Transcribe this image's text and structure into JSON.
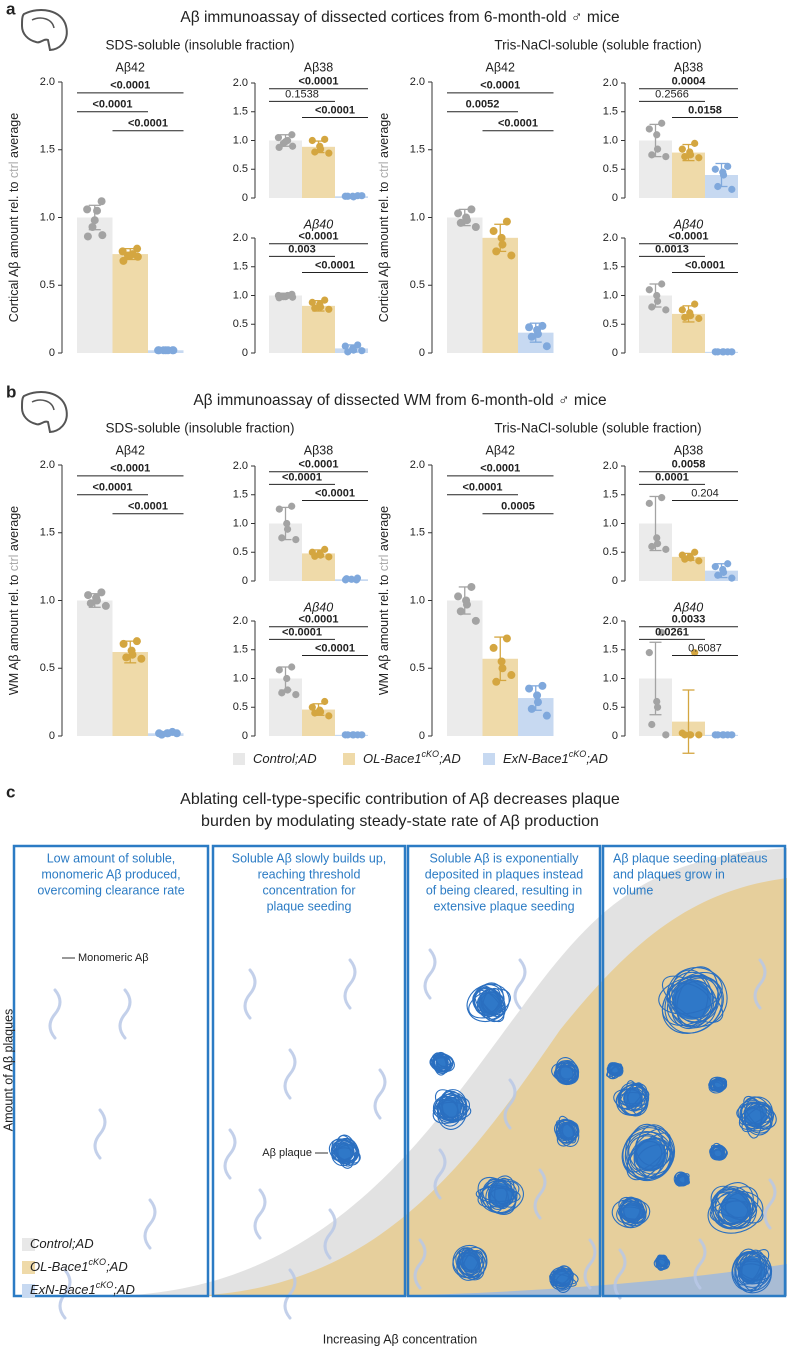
{
  "figure": {
    "panels": [
      {
        "label": "a",
        "title": "Aβ immunoassay of dissected cortices from 6-month-old ♂ mice",
        "groups": [
          "SDS-soluble (insoluble fraction)",
          "Tris-NaCl-soluble (soluble fraction)"
        ]
      },
      {
        "label": "b",
        "title": "Aβ immunoassay of dissected WM from 6-month-old ♂ mice",
        "groups": [
          "SDS-soluble (insoluble fraction)",
          "Tris-NaCl-soluble (soluble fraction)"
        ]
      }
    ],
    "legend": [
      {
        "name": "Control;AD",
        "color": "#e8e8e8"
      },
      {
        "name": "OL-Bace1",
        "sup": "cKO",
        "suffix": ";AD",
        "color": "#efdaa9"
      },
      {
        "name": "ExN-Bace1",
        "sup": "cKO",
        "suffix": ";AD",
        "color": "#c7d9f1"
      }
    ]
  },
  "chart_data": [
    {
      "type": "bar",
      "title": "Aβ42",
      "italic": false,
      "ylabel": [
        "Cortical Aβ amount rel. to ",
        "ctrl",
        " average"
      ],
      "values": [
        1.0,
        0.73,
        0.02
      ],
      "errors": [
        0.09,
        0.04,
        0.005
      ],
      "points": [
        [
          1.12,
          1.06,
          1.05,
          0.98,
          0.93,
          0.87,
          0.86
        ],
        [
          0.77,
          0.75,
          0.73,
          0.72,
          0.72,
          0.71,
          0.68
        ],
        [
          0.02,
          0.02,
          0.02,
          0.02,
          0.02,
          0.02,
          0.02
        ]
      ],
      "colors": [
        "#ebebeb",
        "#efdaa9",
        "#c7d9f1"
      ],
      "point_colors": [
        "#a3a3a3",
        "#d4a640",
        "#7fa8dc"
      ],
      "ylim": [
        0,
        2
      ],
      "yticks": [
        0,
        0.5,
        {
          "value": 1,
          "label": "1.0"
        },
        1.5,
        {
          "value": 2,
          "label": "2.0"
        }
      ],
      "comparisons": [
        {
          "pair": [
            0,
            2
          ],
          "label": "<0.0001",
          "bold": true
        },
        {
          "pair": [
            0,
            1
          ],
          "label": "<0.0001",
          "bold": true
        },
        {
          "pair": [
            1,
            2
          ],
          "label": "<0.0001",
          "bold": true
        }
      ]
    },
    {
      "type": "bar",
      "title": "Aβ38",
      "italic": false,
      "values": [
        1.0,
        0.89,
        0.03
      ],
      "errors": [
        0.1,
        0.1,
        0.01
      ],
      "points": [
        [
          1.1,
          1.05,
          1.0,
          0.98,
          0.95,
          0.9,
          0.88
        ],
        [
          1.02,
          1.0,
          0.9,
          0.85,
          0.8,
          0.78
        ],
        [
          0.04,
          0.03,
          0.03,
          0.02,
          0.03,
          0.04
        ]
      ],
      "colors": [
        "#ebebeb",
        "#efdaa9",
        "#c7d9f1"
      ],
      "point_colors": [
        "#a3a3a3",
        "#d4a640",
        "#7fa8dc"
      ],
      "ylim": [
        0,
        2
      ],
      "yticks": [
        0,
        0.5,
        {
          "value": 1,
          "label": "1.0"
        },
        1.5,
        {
          "value": 2,
          "label": "2.0"
        }
      ],
      "comparisons": [
        {
          "pair": [
            0,
            2
          ],
          "label": "<0.0001",
          "bold": true
        },
        {
          "pair": [
            0,
            1
          ],
          "label": "0.1538",
          "bold": false
        },
        {
          "pair": [
            1,
            2
          ],
          "label": "<0.0001",
          "bold": true
        }
      ]
    },
    {
      "type": "bar",
      "title": "Aβ40",
      "italic": true,
      "values": [
        1.0,
        0.82,
        0.08
      ],
      "errors": [
        0.04,
        0.09,
        0.06
      ],
      "points": [
        [
          1.02,
          1.0,
          1.0,
          0.98,
          0.98,
          0.97,
          0.96
        ],
        [
          0.92,
          0.88,
          0.85,
          0.8,
          0.78,
          0.76
        ],
        [
          0.14,
          0.12,
          0.08,
          0.05,
          0.02,
          0.04
        ]
      ],
      "colors": [
        "#ebebeb",
        "#efdaa9",
        "#c7d9f1"
      ],
      "point_colors": [
        "#a3a3a3",
        "#d4a640",
        "#7fa8dc"
      ],
      "ylim": [
        0,
        2
      ],
      "yticks": [
        0,
        0.5,
        {
          "value": 1,
          "label": "1.0"
        },
        1.5,
        {
          "value": 2,
          "label": "2.0"
        }
      ],
      "comparisons": [
        {
          "pair": [
            0,
            2
          ],
          "label": "<0.0001",
          "bold": true
        },
        {
          "pair": [
            0,
            1
          ],
          "label": "0.003",
          "bold": true
        },
        {
          "pair": [
            1,
            2
          ],
          "label": "<0.0001",
          "bold": true
        }
      ]
    },
    {
      "type": "bar",
      "title": "Aβ42",
      "italic": false,
      "ylabel": [
        "Cortical Aβ amount rel. to ",
        "ctrl",
        " average"
      ],
      "values": [
        1.0,
        0.85,
        0.15
      ],
      "errors": [
        0.06,
        0.1,
        0.07
      ],
      "points": [
        [
          1.06,
          1.03,
          1.0,
          0.98,
          0.96,
          0.93
        ],
        [
          0.97,
          0.9,
          0.85,
          0.8,
          0.75,
          0.72
        ],
        [
          0.2,
          0.19,
          0.17,
          0.14,
          0.12,
          0.05
        ]
      ],
      "colors": [
        "#ebebeb",
        "#efdaa9",
        "#c7d9f1"
      ],
      "point_colors": [
        "#a3a3a3",
        "#d4a640",
        "#7fa8dc"
      ],
      "ylim": [
        0,
        2
      ],
      "yticks": [
        0,
        0.5,
        {
          "value": 1,
          "label": "1.0"
        },
        1.5,
        {
          "value": 2,
          "label": "2.0"
        }
      ],
      "comparisons": [
        {
          "pair": [
            0,
            2
          ],
          "label": "<0.0001",
          "bold": true
        },
        {
          "pair": [
            0,
            1
          ],
          "label": "0.0052",
          "bold": true
        },
        {
          "pair": [
            1,
            2
          ],
          "label": "<0.0001",
          "bold": true
        }
      ]
    },
    {
      "type": "bar",
      "title": "Aβ38",
      "italic": false,
      "values": [
        1.0,
        0.79,
        0.4
      ],
      "errors": [
        0.28,
        0.14,
        0.2
      ],
      "points": [
        [
          1.3,
          1.2,
          1.1,
          0.85,
          0.75,
          0.72
        ],
        [
          0.95,
          0.85,
          0.8,
          0.75,
          0.72,
          0.7
        ],
        [
          0.55,
          0.5,
          0.45,
          0.4,
          0.2,
          0.15
        ]
      ],
      "colors": [
        "#ebebeb",
        "#efdaa9",
        "#c7d9f1"
      ],
      "point_colors": [
        "#a3a3a3",
        "#d4a640",
        "#7fa8dc"
      ],
      "ylim": [
        0,
        2
      ],
      "yticks": [
        0,
        0.5,
        {
          "value": 1,
          "label": "1.0"
        },
        1.5,
        {
          "value": 2,
          "label": "2.0"
        }
      ],
      "comparisons": [
        {
          "pair": [
            0,
            2
          ],
          "label": "0.0004",
          "bold": true
        },
        {
          "pair": [
            0,
            1
          ],
          "label": "0.2566",
          "bold": false
        },
        {
          "pair": [
            1,
            2
          ],
          "label": "0.0158",
          "bold": true
        }
      ]
    },
    {
      "type": "bar",
      "title": "Aβ40",
      "italic": true,
      "values": [
        1.0,
        0.68,
        0.02
      ],
      "errors": [
        0.2,
        0.14,
        0.01
      ],
      "points": [
        [
          1.2,
          1.1,
          1.0,
          0.9,
          0.8,
          0.75
        ],
        [
          0.85,
          0.75,
          0.7,
          0.65,
          0.62,
          0.6
        ],
        [
          0.02,
          0.02,
          0.02,
          0.02,
          0.02,
          0.02
        ]
      ],
      "colors": [
        "#ebebeb",
        "#efdaa9",
        "#c7d9f1"
      ],
      "point_colors": [
        "#a3a3a3",
        "#d4a640",
        "#7fa8dc"
      ],
      "ylim": [
        0,
        2
      ],
      "yticks": [
        0,
        0.5,
        {
          "value": 1,
          "label": "1.0"
        },
        1.5,
        {
          "value": 2,
          "label": "2.0"
        }
      ],
      "comparisons": [
        {
          "pair": [
            0,
            2
          ],
          "label": "<0.0001",
          "bold": true
        },
        {
          "pair": [
            0,
            1
          ],
          "label": "0.0013",
          "bold": true
        },
        {
          "pair": [
            1,
            2
          ],
          "label": "<0.0001",
          "bold": true
        }
      ]
    },
    {
      "type": "bar",
      "title": "Aβ42",
      "italic": false,
      "ylabel": [
        "WM Aβ amount rel. to ",
        "ctrl",
        " average"
      ],
      "values": [
        1.0,
        0.62,
        0.02
      ],
      "errors": [
        0.05,
        0.08,
        0.01
      ],
      "points": [
        [
          1.06,
          1.04,
          1.02,
          1.0,
          0.98,
          0.96
        ],
        [
          0.7,
          0.68,
          0.63,
          0.6,
          0.58,
          0.57
        ],
        [
          0.03,
          0.02,
          0.02,
          0.02,
          0.01,
          0.02
        ]
      ],
      "colors": [
        "#ebebeb",
        "#efdaa9",
        "#c7d9f1"
      ],
      "point_colors": [
        "#a3a3a3",
        "#d4a640",
        "#7fa8dc"
      ],
      "ylim": [
        0,
        2
      ],
      "yticks": [
        0,
        0.5,
        {
          "value": 1,
          "label": "1.0"
        },
        1.5,
        {
          "value": 2,
          "label": "2.0"
        }
      ],
      "comparisons": [
        {
          "pair": [
            0,
            2
          ],
          "label": "<0.0001",
          "bold": true
        },
        {
          "pair": [
            0,
            1
          ],
          "label": "<0.0001",
          "bold": true
        },
        {
          "pair": [
            1,
            2
          ],
          "label": "<0.0001",
          "bold": true
        }
      ]
    },
    {
      "type": "bar",
      "title": "Aβ38",
      "italic": false,
      "values": [
        1.0,
        0.48,
        0.03
      ],
      "errors": [
        0.28,
        0.06,
        0.01
      ],
      "points": [
        [
          1.3,
          1.25,
          1.0,
          0.9,
          0.75,
          0.72
        ],
        [
          0.55,
          0.5,
          0.48,
          0.45,
          0.43,
          0.42
        ],
        [
          0.05,
          0.04,
          0.03,
          0.02,
          0.02
        ]
      ],
      "colors": [
        "#ebebeb",
        "#efdaa9",
        "#c7d9f1"
      ],
      "point_colors": [
        "#a3a3a3",
        "#d4a640",
        "#7fa8dc"
      ],
      "ylim": [
        0,
        2
      ],
      "yticks": [
        0,
        0.5,
        {
          "value": 1,
          "label": "1.0"
        },
        1.5,
        {
          "value": 2,
          "label": "2.0"
        }
      ],
      "comparisons": [
        {
          "pair": [
            0,
            2
          ],
          "label": "<0.0001",
          "bold": true
        },
        {
          "pair": [
            0,
            1
          ],
          "label": "<0.0001",
          "bold": true
        },
        {
          "pair": [
            1,
            2
          ],
          "label": "<0.0001",
          "bold": true
        }
      ]
    },
    {
      "type": "bar",
      "title": "Aβ40",
      "italic": true,
      "values": [
        1.0,
        0.46,
        0.02
      ],
      "errors": [
        0.2,
        0.1,
        0.01
      ],
      "points": [
        [
          1.2,
          1.15,
          1.0,
          0.8,
          0.75,
          0.72
        ],
        [
          0.6,
          0.5,
          0.45,
          0.42,
          0.4,
          0.35
        ],
        [
          0.02,
          0.02,
          0.02,
          0.02,
          0.02,
          0.02
        ]
      ],
      "colors": [
        "#ebebeb",
        "#efdaa9",
        "#c7d9f1"
      ],
      "point_colors": [
        "#a3a3a3",
        "#d4a640",
        "#7fa8dc"
      ],
      "ylim": [
        0,
        2
      ],
      "yticks": [
        0,
        0.5,
        {
          "value": 1,
          "label": "1.0"
        },
        1.5,
        {
          "value": 2,
          "label": "2.0"
        }
      ],
      "comparisons": [
        {
          "pair": [
            0,
            2
          ],
          "label": "<0.0001",
          "bold": true
        },
        {
          "pair": [
            0,
            1
          ],
          "label": "<0.0001",
          "bold": true
        },
        {
          "pair": [
            1,
            2
          ],
          "label": "<0.0001",
          "bold": true
        }
      ]
    },
    {
      "type": "bar",
      "title": "Aβ42",
      "italic": false,
      "ylabel": [
        "WM Aβ amount rel. to ",
        "ctrl",
        " average"
      ],
      "values": [
        1.0,
        0.57,
        0.28
      ],
      "errors": [
        0.1,
        0.16,
        0.09
      ],
      "points": [
        [
          1.1,
          1.03,
          1.0,
          0.97,
          0.92,
          0.85
        ],
        [
          0.72,
          0.65,
          0.55,
          0.5,
          0.4,
          0.45
        ],
        [
          0.37,
          0.35,
          0.3,
          0.25,
          0.2,
          0.15
        ]
      ],
      "colors": [
        "#ebebeb",
        "#efdaa9",
        "#c7d9f1"
      ],
      "point_colors": [
        "#a3a3a3",
        "#d4a640",
        "#7fa8dc"
      ],
      "ylim": [
        0,
        2
      ],
      "yticks": [
        0,
        0.5,
        {
          "value": 1,
          "label": "1.0"
        },
        1.5,
        {
          "value": 2,
          "label": "2.0"
        }
      ],
      "comparisons": [
        {
          "pair": [
            0,
            2
          ],
          "label": "<0.0001",
          "bold": true
        },
        {
          "pair": [
            0,
            1
          ],
          "label": "<0.0001",
          "bold": true
        },
        {
          "pair": [
            1,
            2
          ],
          "label": "0.0005",
          "bold": true
        }
      ]
    },
    {
      "type": "bar",
      "title": "Aβ38",
      "italic": false,
      "values": [
        1.0,
        0.42,
        0.18
      ],
      "errors": [
        0.47,
        0.06,
        0.12
      ],
      "points": [
        [
          1.45,
          1.35,
          0.75,
          0.65,
          0.6,
          0.55
        ],
        [
          0.5,
          0.45,
          0.42,
          0.4,
          0.38,
          0.35
        ],
        [
          0.3,
          0.25,
          0.2,
          0.15,
          0.1,
          0.05
        ]
      ],
      "colors": [
        "#ebebeb",
        "#efdaa9",
        "#c7d9f1"
      ],
      "point_colors": [
        "#a3a3a3",
        "#d4a640",
        "#7fa8dc"
      ],
      "ylim": [
        0,
        2
      ],
      "yticks": [
        0,
        0.5,
        {
          "value": 1,
          "label": "1.0"
        },
        1.5,
        {
          "value": 2,
          "label": "2.0"
        }
      ],
      "comparisons": [
        {
          "pair": [
            0,
            2
          ],
          "label": "0.0058",
          "bold": true
        },
        {
          "pair": [
            0,
            1
          ],
          "label": "0.0001",
          "bold": true
        },
        {
          "pair": [
            1,
            2
          ],
          "label": "0.204",
          "bold": false
        }
      ]
    },
    {
      "type": "bar",
      "title": "Aβ40",
      "italic": true,
      "values": [
        1.0,
        0.25,
        0.02
      ],
      "errors": [
        0.63,
        0.55,
        0.01
      ],
      "points": [
        [
          1.8,
          1.45,
          0.6,
          0.5,
          0.2,
          0.02
        ],
        [
          1.45,
          0.05,
          0.02,
          0.02,
          0.02,
          0.02
        ],
        [
          0.02,
          0.02,
          0.02,
          0.02,
          0.02,
          0.02
        ]
      ],
      "colors": [
        "#ebebeb",
        "#efdaa9",
        "#c7d9f1"
      ],
      "point_colors": [
        "#a3a3a3",
        "#d4a640",
        "#7fa8dc"
      ],
      "ylim": [
        0,
        2
      ],
      "yticks": [
        0,
        0.5,
        {
          "value": 1,
          "label": "1.0"
        },
        1.5,
        {
          "value": 2,
          "label": "2.0"
        }
      ],
      "comparisons": [
        {
          "pair": [
            0,
            2
          ],
          "label": "0.0033",
          "bold": true
        },
        {
          "pair": [
            0,
            1
          ],
          "label": "0.0261",
          "bold": true
        },
        {
          "pair": [
            1,
            2
          ],
          "label": "0.6087",
          "bold": false
        }
      ]
    }
  ],
  "diagram": {
    "label": "c",
    "title": [
      "Ablating cell-type-specific contribution of Aβ decreases plaque",
      "burden by modulating steady-state rate of Aβ production"
    ],
    "stages": [
      [
        "Low amount of soluble,",
        "monomeric Aβ produced,",
        "overcoming clearance rate"
      ],
      [
        "Soluble Aβ slowly builds up,",
        "reaching threshold",
        "concentration for",
        "plaque seeding"
      ],
      [
        "Soluble Aβ is exponentially",
        "deposited in plaques instead",
        "of being cleared, resulting in",
        "extensive plaque seeding"
      ],
      [
        "Aβ plaque seeding plateaus",
        "and plaques grow in",
        "volume"
      ]
    ],
    "monomer_label": "Monomeric Aβ",
    "plaque_label": "Aβ plaque",
    "ylabel": "Amount of Aβ plaques",
    "xlabel": "Increasing Aβ concentration"
  }
}
